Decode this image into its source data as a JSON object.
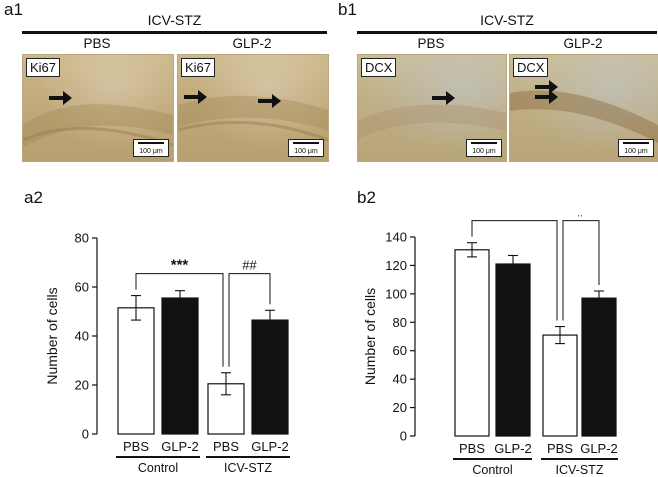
{
  "panel_labels": {
    "a1": "a1",
    "b1": "b1",
    "a2": "a2",
    "b2": "b2"
  },
  "top": {
    "a1": {
      "group": "ICV-STZ",
      "left": "PBS",
      "right": "GLP-2",
      "stain_left": "Ki67",
      "stain_right": "Ki67",
      "scale": "100 μm"
    },
    "b1": {
      "group": "ICV-STZ",
      "left": "PBS",
      "right": "GLP-2",
      "stain_left": "DCX",
      "stain_right": "DCX",
      "scale": "100 μm"
    }
  },
  "chart_data": [
    {
      "type": "bar",
      "panel": "a2",
      "categories": [
        "PBS",
        "GLP-2",
        "PBS",
        "GLP-2"
      ],
      "groups": [
        {
          "label": "Control",
          "categories": [
            0,
            1
          ]
        },
        {
          "label": "ICV-STZ",
          "categories": [
            2,
            3
          ]
        }
      ],
      "values": [
        51.5,
        55.5,
        20.5,
        46.5
      ],
      "errors": [
        5,
        3,
        4.5,
        4
      ],
      "fill": [
        "#ffffff",
        "#111111",
        "#ffffff",
        "#111111"
      ],
      "ylabel": "Number of cells",
      "ylim": [
        0,
        80
      ],
      "yticks": [
        "0",
        "20",
        "40",
        "60",
        "80"
      ],
      "significance": [
        {
          "from": 0,
          "to": 2,
          "label": "***"
        },
        {
          "from": 2,
          "to": 3,
          "label": "##"
        }
      ]
    },
    {
      "type": "bar",
      "panel": "b2",
      "categories": [
        "PBS",
        "GLP-2",
        "PBS",
        "GLP-2"
      ],
      "groups": [
        {
          "label": "Control",
          "categories": [
            0,
            1
          ]
        },
        {
          "label": "ICV-STZ",
          "categories": [
            2,
            3
          ]
        }
      ],
      "values": [
        131,
        121,
        71,
        97
      ],
      "errors": [
        5,
        6,
        6,
        5
      ],
      "fill": [
        "#ffffff",
        "#111111",
        "#ffffff",
        "#111111"
      ],
      "ylabel": "Number of cells",
      "ylim": [
        0,
        140
      ],
      "yticks": [
        "0",
        "20",
        "40",
        "60",
        "80",
        "100",
        "120",
        "140"
      ],
      "significance": [
        {
          "from": 0,
          "to": 2,
          "label": "***"
        },
        {
          "from": 2,
          "to": 3,
          "label": "#"
        }
      ]
    }
  ]
}
